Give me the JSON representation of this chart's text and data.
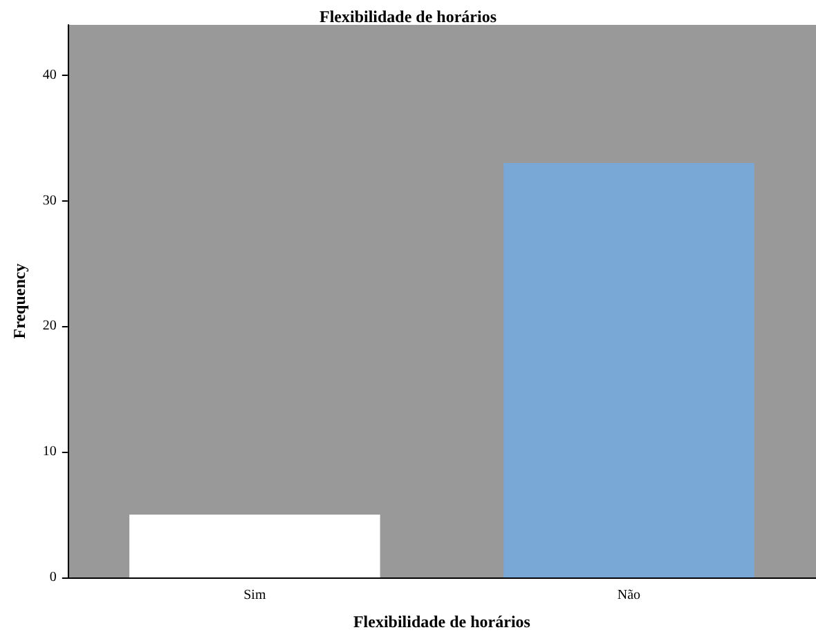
{
  "chart_data": {
    "type": "bar",
    "title": "Flexibilidade de horários",
    "xlabel": "Flexibilidade de horários",
    "ylabel": "Frequency",
    "categories": [
      "Sim",
      "Não"
    ],
    "values": [
      5,
      33
    ],
    "colors": [
      "#ffffff",
      "#79a7d6"
    ],
    "ylim": [
      0,
      44
    ],
    "yticks": [
      0,
      10,
      20,
      30,
      40
    ],
    "grid": false
  }
}
